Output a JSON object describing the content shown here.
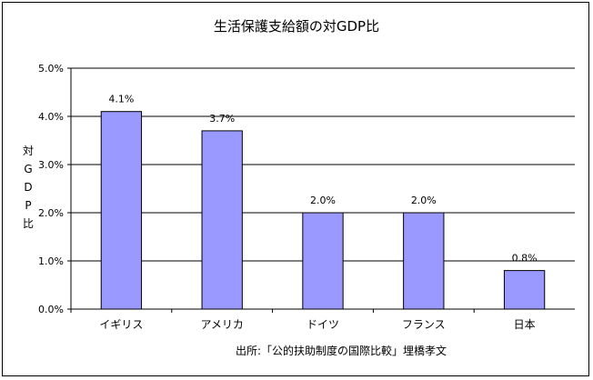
{
  "chart_data": {
    "type": "bar",
    "title": "生活保護支給額の対GDP比",
    "ylabel": "対GDP比",
    "xlabel": "",
    "categories": [
      "イギリス",
      "アメリカ",
      "ドイツ",
      "フランス",
      "日本"
    ],
    "values": [
      4.1,
      3.7,
      2.0,
      2.0,
      0.8
    ],
    "data_labels": [
      "4.1%",
      "3.7%",
      "2.0%",
      "2.0%",
      "0.8%"
    ],
    "ylim": [
      0,
      5
    ],
    "yticks": [
      {
        "value": 0,
        "label": "0.0%"
      },
      {
        "value": 1,
        "label": "1.0%"
      },
      {
        "value": 2,
        "label": "2.0%"
      },
      {
        "value": 3,
        "label": "3.0%"
      },
      {
        "value": 4,
        "label": "4.0%"
      },
      {
        "value": 5,
        "label": "5.0%"
      }
    ],
    "grid": true,
    "legend": "none",
    "source": "出所:「公的扶助制度の国際比較」埋橋孝文",
    "colors": {
      "bar": "#9999ff",
      "bar_outline": "#000000",
      "grid": "#000000"
    }
  }
}
